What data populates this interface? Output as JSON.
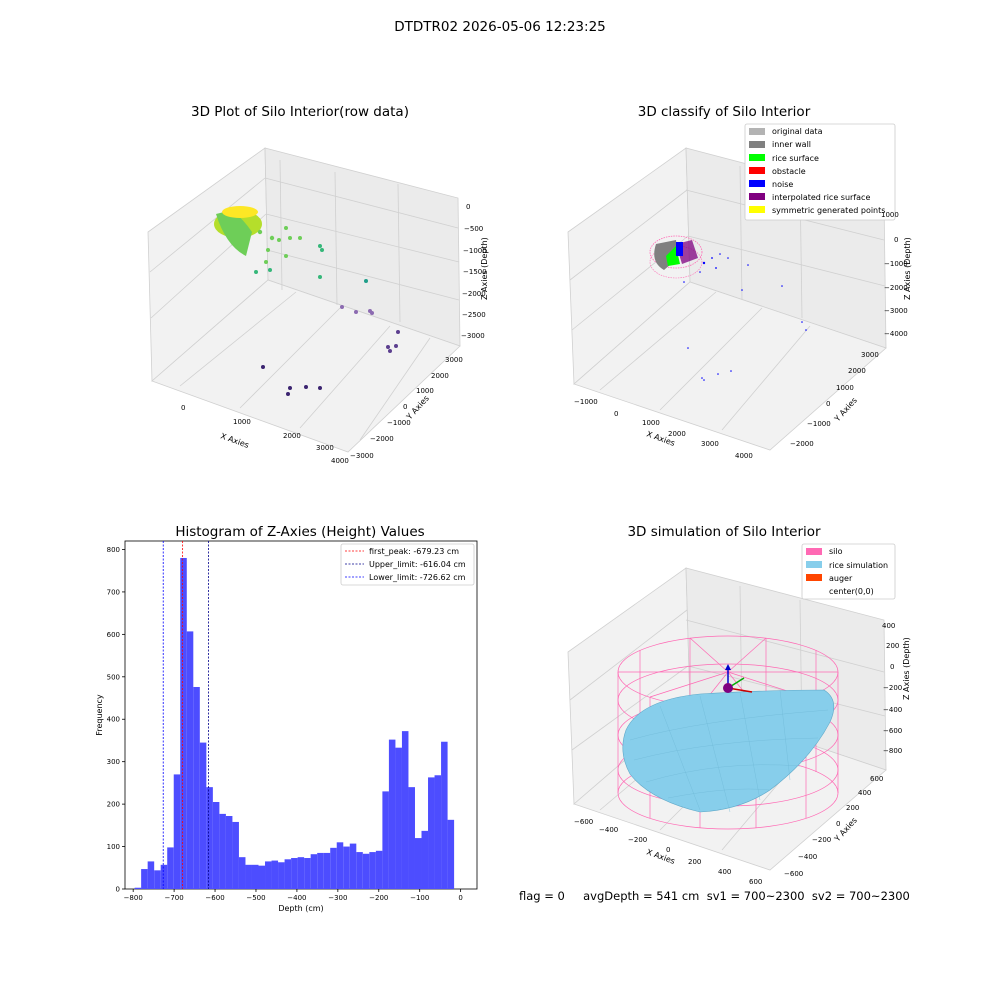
{
  "figure": {
    "suptitle": "DTDTR02 2026-05-06 12:23:25",
    "status_line": "flag = 0     avgDepth = 541 cm  sv1 = 700~2300  sv2 = 700~2300"
  },
  "panels": {
    "raw": {
      "title": "3D Plot of Silo Interior(row data)",
      "xlabel": "X Axies",
      "ylabel": "Y Axies",
      "zlabel": "Z Axies (Depth)",
      "xticks": [
        "0",
        "1000",
        "2000",
        "3000",
        "4000"
      ],
      "yticks": [
        "−3000",
        "−2000",
        "−1000",
        "0",
        "1000",
        "2000",
        "3000"
      ],
      "zticks": [
        "0",
        "−500",
        "−1000",
        "−1500",
        "−2000",
        "−2500",
        "−3000"
      ]
    },
    "classify": {
      "title": "3D classify of Silo Interior",
      "xlabel": "X Axies",
      "ylabel": "Y Axies",
      "zlabel": "Z Axies (Depth)",
      "xticks": [
        "−1000",
        "0",
        "1000",
        "2000",
        "3000",
        "4000"
      ],
      "yticks": [
        "−2000",
        "−1000",
        "0",
        "1000",
        "2000",
        "3000"
      ],
      "zticks": [
        "1000",
        "0",
        "−1000",
        "−2000",
        "−3000",
        "−4000"
      ],
      "legend": [
        {
          "label": "original data",
          "color": "#b3b3b3"
        },
        {
          "label": "inner wall",
          "color": "#808080"
        },
        {
          "label": "rice surface",
          "color": "#00ff00"
        },
        {
          "label": "obstacle",
          "color": "#ff0000"
        },
        {
          "label": "noise",
          "color": "#0000ff"
        },
        {
          "label": "interpolated rice surface",
          "color": "#800080"
        },
        {
          "label": "symmetric generated points",
          "color": "#ffff00"
        }
      ]
    },
    "simulation": {
      "title": "3D simulation of Silo Interior",
      "xlabel": "X Axies",
      "ylabel": "Y Axies",
      "zlabel": "Z Axies (Depth)",
      "xticks": [
        "−600",
        "−400",
        "−200",
        "0",
        "200",
        "400",
        "600"
      ],
      "yticks": [
        "−600",
        "−400",
        "−200",
        "0",
        "200",
        "400",
        "600"
      ],
      "zticks": [
        "400",
        "200",
        "0",
        "−200",
        "−400",
        "−600",
        "−800"
      ],
      "legend": [
        {
          "label": "silo",
          "color": "#ff69b4"
        },
        {
          "label": "rice simulation",
          "color": "#87ceeb"
        },
        {
          "label": "auger",
          "color": "#ff4500"
        },
        {
          "label": "center(0,0)",
          "color": "#ffffff"
        }
      ]
    }
  },
  "chart_data": {
    "type": "bar",
    "title": "Histogram of Z-Axies (Height) Values",
    "xlabel": "Depth (cm)",
    "ylabel": "Frequency",
    "xlim": [
      -820,
      40
    ],
    "ylim": [
      0,
      820
    ],
    "xticks": [
      -800,
      -700,
      -600,
      -500,
      -400,
      -300,
      -200,
      -100,
      0
    ],
    "yticks": [
      0,
      100,
      200,
      300,
      400,
      500,
      600,
      700,
      800
    ],
    "bar_color": "#4d4dff",
    "bin_width": 15.93,
    "bin_start": -796.5,
    "values": [
      3,
      47,
      65,
      44,
      57,
      98,
      270,
      780,
      607,
      476,
      345,
      240,
      205,
      177,
      172,
      158,
      75,
      57,
      57,
      55,
      65,
      67,
      63,
      70,
      73,
      75,
      73,
      82,
      85,
      85,
      97,
      110,
      100,
      107,
      87,
      83,
      87,
      90,
      230,
      352,
      333,
      372,
      240,
      120,
      137,
      263,
      268,
      347,
      163
    ],
    "vlines": [
      {
        "label": "first_peak: -679.23 cm",
        "x": -679.23,
        "color": "#ff0000"
      },
      {
        "label": "Upper_limit: -616.04 cm",
        "x": -616.04,
        "color": "#00008b"
      },
      {
        "label": "Lower_limit: -726.62 cm",
        "x": -726.62,
        "color": "#0000ff"
      }
    ],
    "legend_position": "upper right"
  }
}
